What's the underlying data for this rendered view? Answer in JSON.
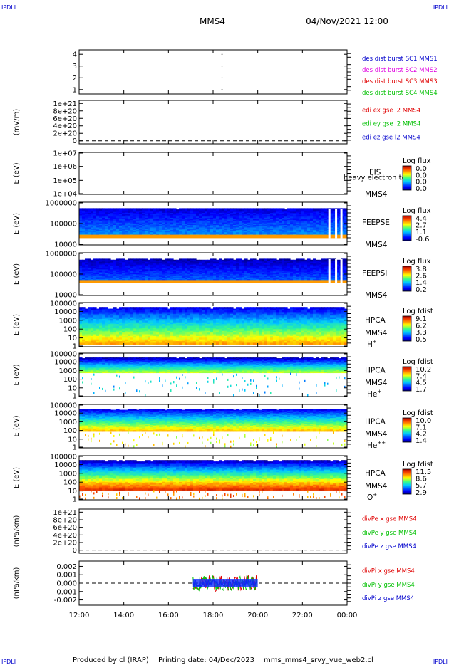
{
  "corner_labels": [
    "IPDLI",
    "IPDLI",
    "IPDLI",
    "IPDLI"
  ],
  "header": {
    "spacecraft": "MMS4",
    "datetime": "04/Nov/2021 12:00"
  },
  "footer": {
    "produced_by": "Produced by cl (IRAP)",
    "printing_date": "Printing date: 04/Dec/2023",
    "filename": "mms_mms4_srvy_vue_web2.cl"
  },
  "colors": {
    "red": "#e00000",
    "green": "#00c000",
    "blue": "#0000cc",
    "magenta": "#e000e0",
    "dark_red": "#cc0000"
  },
  "time_axis": {
    "ticks": [
      "12:00",
      "14:00",
      "16:00",
      "18:00",
      "20:00",
      "22:00",
      "00:00"
    ],
    "range_hours": [
      12,
      24
    ]
  },
  "chart_data": [
    {
      "id": "burst",
      "type": "scatter",
      "yticks": [
        "4",
        "3",
        "2",
        "1"
      ],
      "yrange": [
        0.5,
        4.5
      ],
      "points_x_hours": [
        18.4,
        18.4,
        18.4,
        18.4
      ],
      "points_y": [
        4,
        3,
        2,
        1
      ],
      "legend": [
        {
          "text": "des dist burst SC1 MMS1",
          "color": "#0000cc"
        },
        {
          "text": "des dist burst SC2 MMS2",
          "color": "#e000e0"
        },
        {
          "text": "des dist burst SC3 MMS3",
          "color": "#e00000"
        },
        {
          "text": "des dist burst SC4 MMS4",
          "color": "#00c000"
        }
      ]
    },
    {
      "id": "edi",
      "type": "line",
      "ylabel": "(mV/m)",
      "yticks": [
        "1e+21",
        "8e+20",
        "6e+20",
        "4e+20",
        "2e+20",
        "0"
      ],
      "zero_line": true,
      "legend": [
        {
          "text": "edi ex gse l2 MMS4",
          "color": "#e00000"
        },
        {
          "text": "edi ey gse l2 MMS4",
          "color": "#00c000"
        },
        {
          "text": "edi ez gse l2 MMS4",
          "color": "#0000cc"
        }
      ]
    },
    {
      "id": "eis",
      "type": "heatmap",
      "ylabel": "E (eV)",
      "yticks": [
        "1e+07",
        "1e+06",
        "1e+05",
        "1e+04"
      ],
      "instrument": "EIS",
      "spacecraft": "MMS4",
      "overlay_text": "heavy electron to",
      "colorbar": {
        "title": "Log flux",
        "values": [
          "0.0",
          "0.0",
          "0.0",
          "0.0"
        ]
      }
    },
    {
      "id": "feepse",
      "type": "heatmap",
      "ylabel": "E (eV)",
      "yticks": [
        "1000000",
        "100000",
        "10000"
      ],
      "instrument": "FEEPSE",
      "spacecraft": "MMS4",
      "colorbar": {
        "title": "Log flux",
        "values": [
          "4.4",
          "2.7",
          "1.1",
          "-0.6"
        ]
      }
    },
    {
      "id": "feepsi",
      "type": "heatmap",
      "ylabel": "E (eV)",
      "yticks": [
        "1000000",
        "100000",
        "10000"
      ],
      "instrument": "FEEPSI",
      "spacecraft": "MMS4",
      "colorbar": {
        "title": "Log flux",
        "values": [
          "3.8",
          "2.6",
          "1.4",
          "0.2"
        ]
      }
    },
    {
      "id": "hpca-h",
      "type": "heatmap",
      "ylabel": "E (eV)",
      "yticks": [
        "100000",
        "10000",
        "1000",
        "100",
        "10",
        "1"
      ],
      "instrument": "HPCA",
      "spacecraft": "MMS4",
      "species_base": "H",
      "species_sup": "+",
      "colorbar": {
        "title": "Log fdist",
        "values": [
          "9.1",
          "6.2",
          "3.3",
          "0.5"
        ]
      }
    },
    {
      "id": "hpca-he",
      "type": "heatmap",
      "ylabel": "E (eV)",
      "yticks": [
        "100000",
        "10000",
        "1000",
        "100",
        "10",
        "1"
      ],
      "instrument": "HPCA",
      "spacecraft": "MMS4",
      "species_base": "He",
      "species_sup": "+",
      "colorbar": {
        "title": "Log fdist",
        "values": [
          "10.2",
          "7.4",
          "4.5",
          "1.7"
        ]
      }
    },
    {
      "id": "hpca-he2",
      "type": "heatmap",
      "ylabel": "E (eV)",
      "yticks": [
        "100000",
        "10000",
        "1000",
        "100",
        "10",
        "1"
      ],
      "instrument": "HPCA",
      "spacecraft": "MMS4",
      "species_base": "He",
      "species_sup": "++",
      "colorbar": {
        "title": "Log fdist",
        "values": [
          "10.0",
          "7.1",
          "4.2",
          "1.4"
        ]
      }
    },
    {
      "id": "hpca-o",
      "type": "heatmap",
      "ylabel": "E (eV)",
      "yticks": [
        "100000",
        "10000",
        "1000",
        "100",
        "10",
        "1"
      ],
      "instrument": "HPCA",
      "spacecraft": "MMS4",
      "species_base": "O",
      "species_sup": "+",
      "colorbar": {
        "title": "Log fdist",
        "values": [
          "11.5",
          "8.6",
          "5.7",
          "2.9"
        ]
      }
    },
    {
      "id": "divpe",
      "type": "line",
      "ylabel": "(nPa/km)",
      "yticks": [
        "1e+21",
        "8e+20",
        "6e+20",
        "4e+20",
        "2e+20",
        "0"
      ],
      "zero_line": true,
      "legend": [
        {
          "text": "divPe x gse MMS4",
          "color": "#e00000"
        },
        {
          "text": "divPe y gse MMS4",
          "color": "#00c000"
        },
        {
          "text": "divPe z gse MMS4",
          "color": "#0000cc"
        }
      ]
    },
    {
      "id": "divpi",
      "type": "line",
      "ylabel": "(nPa/km)",
      "yticks": [
        "0.002",
        "0.001",
        "0.000",
        "-0.001",
        "-0.002"
      ],
      "yrange": [
        -0.0027,
        0.0027
      ],
      "data_x_range_hours": [
        17.1,
        20.0
      ],
      "zero_line": true,
      "legend": [
        {
          "text": "divPi x gse MMS4",
          "color": "#e00000"
        },
        {
          "text": "divPi y gse MMS4",
          "color": "#00c000"
        },
        {
          "text": "divPi z gse MMS4",
          "color": "#0000cc"
        }
      ]
    }
  ]
}
